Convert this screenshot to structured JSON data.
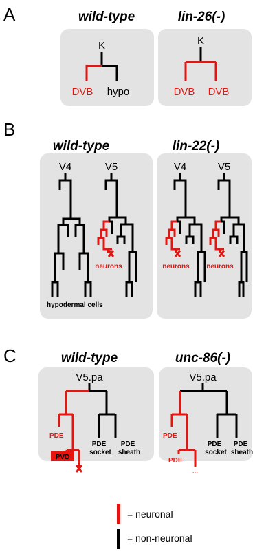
{
  "colors": {
    "neuronal": "#e8140f",
    "non_neuronal": "#000000",
    "panel_bg": "#e3e3e3"
  },
  "panel_a": {
    "label": "A",
    "wild_type": {
      "title": "wild-type",
      "root": "K",
      "left": "DVB",
      "right": "hypo"
    },
    "mutant": {
      "title": "lin-26(-)",
      "root": "K",
      "left": "DVB",
      "right": "DVB"
    }
  },
  "panel_b": {
    "label": "B",
    "wild_type": {
      "title": "wild-type",
      "left_root": "V4",
      "right_root": "V5",
      "neurons": "neurons",
      "hypodermal": "hypodermal cells"
    },
    "mutant": {
      "title": "lin-22(-)",
      "left_root": "V4",
      "right_root": "V5",
      "neurons_left": "neurons",
      "neurons_right": "neurons"
    }
  },
  "panel_c": {
    "label": "C",
    "wild_type": {
      "title": "wild-type",
      "root": "V5.pa",
      "pde": "PDE",
      "pvd": "PVD",
      "pde_socket_1": "PDE",
      "pde_socket_2": "socket",
      "pde_sheath_1": "PDE",
      "pde_sheath_2": "sheath"
    },
    "mutant": {
      "title": "unc-86(-)",
      "root": "V5.pa",
      "pde_top": "PDE",
      "pde_bottom": "PDE",
      "ellipsis": "...",
      "pde_socket_1": "PDE",
      "pde_socket_2": "socket",
      "pde_sheath_1": "PDE",
      "pde_sheath_2": "sheath"
    }
  },
  "legend": {
    "neuronal": "= neuronal",
    "non_neuronal": "= non-neuronal"
  }
}
